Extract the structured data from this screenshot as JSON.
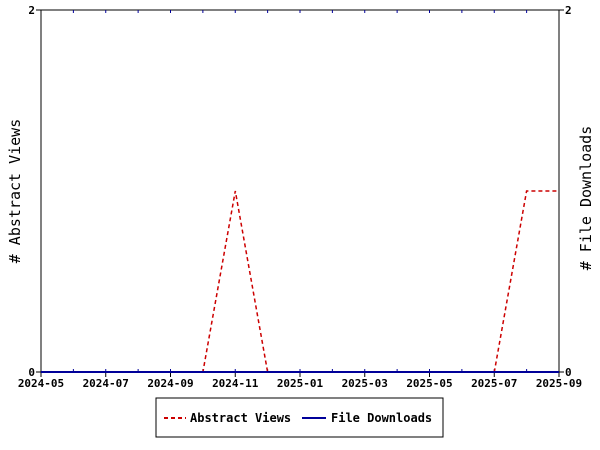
{
  "chart_data": {
    "type": "line",
    "x_ticks": [
      "2024-05",
      "2024-07",
      "2024-09",
      "2024-11",
      "2025-01",
      "2025-03",
      "2025-05",
      "2025-07",
      "2025-09"
    ],
    "x_months": [
      "2024-05",
      "2024-06",
      "2024-07",
      "2024-08",
      "2024-09",
      "2024-10",
      "2024-11",
      "2024-12",
      "2025-01",
      "2025-02",
      "2025-03",
      "2025-04",
      "2025-05",
      "2025-06",
      "2025-07",
      "2025-08",
      "2025-09"
    ],
    "ylabel_left": "# Abstract Views",
    "ylabel_right": "# File Downloads",
    "ylim_left": [
      0,
      2
    ],
    "ylim_right": [
      0,
      2
    ],
    "y_ticks_left": [
      "0",
      "2"
    ],
    "y_ticks_right": [
      "0",
      "2"
    ],
    "grid": false,
    "legend_position": "bottom",
    "series": [
      {
        "name": "Abstract Views",
        "axis": "left",
        "color": "#cc0000",
        "style": "dashed",
        "values": [
          0,
          0,
          0,
          0,
          0,
          0,
          1,
          0,
          0,
          0,
          0,
          0,
          0,
          0,
          0,
          1,
          1
        ]
      },
      {
        "name": "File Downloads",
        "axis": "right",
        "color": "#000099",
        "style": "solid",
        "values": [
          0,
          0,
          0,
          0,
          0,
          0,
          0,
          0,
          0,
          0,
          0,
          0,
          0,
          0,
          0,
          0,
          0
        ]
      }
    ]
  }
}
